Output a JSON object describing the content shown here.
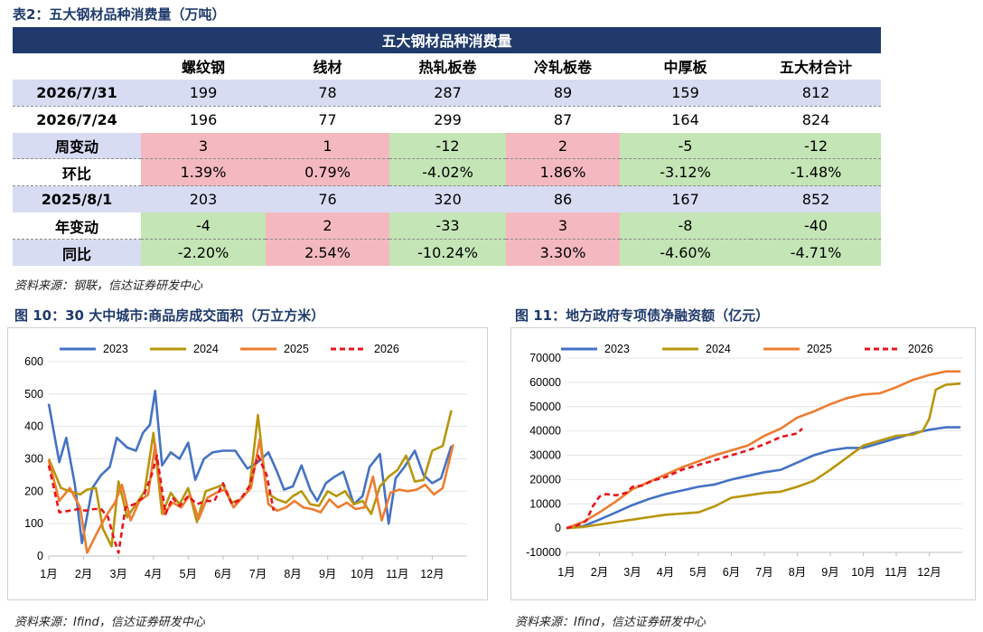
{
  "table": {
    "caption": "表2：五大钢材品种消费量（万吨）",
    "title": "五大钢材品种消费量",
    "columns": [
      "螺纹钢",
      "线材",
      "热轧板卷",
      "冷轧板卷",
      "中厚板",
      "五大材合计"
    ],
    "rows": [
      {
        "label": "2026/7/31",
        "values": [
          "199",
          "78",
          "287",
          "89",
          "159",
          "812"
        ]
      },
      {
        "label": "2026/7/24",
        "values": [
          "196",
          "77",
          "299",
          "87",
          "164",
          "824"
        ]
      },
      {
        "label": "周变动",
        "values": [
          "3",
          "1",
          "-12",
          "2",
          "-5",
          "-12"
        ]
      },
      {
        "label": "环比",
        "values": [
          "1.39%",
          "0.79%",
          "-4.02%",
          "1.86%",
          "-3.12%",
          "-1.48%"
        ]
      },
      {
        "label": "2025/8/1",
        "values": [
          "203",
          "76",
          "320",
          "86",
          "167",
          "852"
        ]
      },
      {
        "label": "年变动",
        "values": [
          "-4",
          "2",
          "-33",
          "3",
          "-8",
          "-40"
        ]
      },
      {
        "label": "同比",
        "values": [
          "-2.20%",
          "2.54%",
          "-10.24%",
          "3.30%",
          "-4.60%",
          "-4.71%"
        ]
      }
    ],
    "source": "资料来源：钢联，信达证券研发中心",
    "colors": {
      "header": "#1f3a6b",
      "rise": "#f4b9c0",
      "fall": "#c4e5b5",
      "date_row": "#d8dcf3"
    }
  },
  "chart_data": [
    {
      "type": "line",
      "caption": "图 10：30 大中城市:商品房成交面积（万立方米）",
      "x_ticks": [
        "1月",
        "2月",
        "3月",
        "4月",
        "5月",
        "6月",
        "7月",
        "8月",
        "9月",
        "10月",
        "11月",
        "12月"
      ],
      "ylim": [
        0,
        600
      ],
      "y_ticks": [
        "0",
        "100",
        "200",
        "300",
        "400",
        "500",
        "600"
      ],
      "series": [
        {
          "name": "2023",
          "color": "#4472c4",
          "dashed": false,
          "x": [
            1,
            1.3,
            1.5,
            1.75,
            1.95,
            2.25,
            2.5,
            2.75,
            2.95,
            3.25,
            3.5,
            3.7,
            3.9,
            4.05,
            4.25,
            4.5,
            4.75,
            5.0,
            5.2,
            5.45,
            5.7,
            6.0,
            6.35,
            6.7,
            7.0,
            7.3,
            7.55,
            7.75,
            8.0,
            8.25,
            8.5,
            8.7,
            8.95,
            9.2,
            9.45,
            9.75,
            10.0,
            10.2,
            10.5,
            10.75,
            10.95,
            11.2,
            11.5,
            11.75,
            12.0,
            12.25,
            12.55
          ],
          "y": [
            470,
            290,
            365,
            220,
            40,
            210,
            250,
            275,
            365,
            335,
            325,
            380,
            405,
            510,
            280,
            320,
            300,
            350,
            235,
            300,
            320,
            325,
            325,
            270,
            290,
            320,
            260,
            205,
            215,
            280,
            205,
            170,
            225,
            245,
            260,
            160,
            185,
            275,
            315,
            100,
            240,
            275,
            325,
            250,
            225,
            240,
            340
          ]
        },
        {
          "name": "2024",
          "color": "#b8960c",
          "dashed": false,
          "x": [
            1,
            1.35,
            1.6,
            1.9,
            2.1,
            2.35,
            2.55,
            2.8,
            3.0,
            3.25,
            3.5,
            3.75,
            4.0,
            4.25,
            4.5,
            4.75,
            5.0,
            5.25,
            5.5,
            5.75,
            6.0,
            6.25,
            6.5,
            6.75,
            7.0,
            7.25,
            7.55,
            7.8,
            8.0,
            8.25,
            8.5,
            8.75,
            9.0,
            9.25,
            9.5,
            9.75,
            10.0,
            10.25,
            10.5,
            10.75,
            11.0,
            11.25,
            11.5,
            11.75,
            12.0,
            12.3,
            12.55
          ],
          "y": [
            300,
            210,
            200,
            190,
            205,
            210,
            85,
            30,
            230,
            120,
            160,
            200,
            380,
            130,
            195,
            160,
            210,
            105,
            200,
            210,
            220,
            165,
            175,
            205,
            435,
            195,
            175,
            165,
            185,
            200,
            160,
            155,
            200,
            185,
            200,
            160,
            170,
            130,
            215,
            245,
            265,
            310,
            230,
            235,
            325,
            340,
            450
          ]
        },
        {
          "name": "2025",
          "color": "#ed7d31",
          "dashed": false,
          "x": [
            1,
            1.3,
            1.6,
            1.9,
            2.1,
            2.4,
            2.65,
            2.9,
            3.1,
            3.35,
            3.6,
            3.85,
            4.05,
            4.3,
            4.55,
            4.8,
            5.05,
            5.3,
            5.55,
            5.8,
            6.05,
            6.3,
            6.55,
            6.8,
            7.05,
            7.3,
            7.55,
            7.8,
            8.05,
            8.3,
            8.55,
            8.8,
            9.05,
            9.3,
            9.55,
            9.8,
            10.05,
            10.3,
            10.55,
            10.8,
            11.05,
            11.3,
            11.55,
            11.8,
            12.05,
            12.3,
            12.6
          ],
          "y": [
            295,
            170,
            210,
            150,
            10,
            75,
            125,
            165,
            220,
            110,
            170,
            190,
            345,
            130,
            165,
            150,
            190,
            115,
            180,
            195,
            205,
            150,
            180,
            210,
            360,
            160,
            140,
            150,
            170,
            150,
            145,
            135,
            175,
            150,
            165,
            145,
            150,
            245,
            110,
            195,
            205,
            200,
            205,
            220,
            190,
            210,
            345
          ]
        },
        {
          "name": "2026",
          "color": "#e8141e",
          "dashed": true,
          "x": [
            1,
            1.3,
            1.6,
            1.85,
            2.05,
            2.3,
            2.5,
            2.7,
            2.85,
            3.0,
            3.2,
            3.45,
            3.7,
            3.95,
            4.1,
            4.35,
            4.55,
            4.75,
            5.0,
            5.25,
            5.5,
            5.75,
            6.0,
            6.25,
            6.5,
            6.75,
            7.0,
            7.25,
            7.45
          ],
          "y": [
            280,
            135,
            140,
            145,
            140,
            145,
            145,
            120,
            60,
            10,
            150,
            160,
            180,
            250,
            310,
            130,
            180,
            155,
            185,
            160,
            170,
            170,
            225,
            160,
            175,
            215,
            310,
            250,
            140
          ]
        }
      ],
      "source": "资料来源：Ifind，信达证券研发中心"
    },
    {
      "type": "line",
      "caption": "图 11：地方政府专项债净融资额（亿元）",
      "x_ticks": [
        "1月",
        "2月",
        "3月",
        "4月",
        "5月",
        "6月",
        "7月",
        "8月",
        "9月",
        "10月",
        "11月",
        "12月"
      ],
      "ylim": [
        -10000,
        70000
      ],
      "y_ticks": [
        "-10000",
        "0",
        "10000",
        "20000",
        "30000",
        "40000",
        "50000",
        "60000",
        "70000"
      ],
      "series": [
        {
          "name": "2023",
          "color": "#4472c4",
          "dashed": false,
          "x": [
            1,
            1.5,
            2.0,
            2.5,
            3.0,
            3.5,
            4.0,
            4.5,
            5.0,
            5.5,
            6.0,
            6.5,
            7.0,
            7.5,
            8.0,
            8.5,
            9.0,
            9.5,
            10.0,
            10.5,
            11.0,
            11.5,
            12.0,
            12.5,
            12.95
          ],
          "y": [
            0,
            800,
            3500,
            6500,
            9500,
            12000,
            14000,
            15500,
            17000,
            18000,
            20000,
            21500,
            23000,
            24000,
            27000,
            30000,
            32000,
            33000,
            33000,
            35000,
            37000,
            39000,
            40500,
            41500,
            41500
          ]
        },
        {
          "name": "2024",
          "color": "#b8960c",
          "dashed": false,
          "x": [
            1,
            1.5,
            2.0,
            2.5,
            3.0,
            3.5,
            4.0,
            4.5,
            5.0,
            5.5,
            6.0,
            6.5,
            7.0,
            7.5,
            8.0,
            8.5,
            9.0,
            9.5,
            10.0,
            10.5,
            11.0,
            11.5,
            11.8,
            12.0,
            12.2,
            12.5,
            12.95
          ],
          "y": [
            0,
            500,
            1500,
            2500,
            3500,
            4500,
            5500,
            6000,
            6500,
            9000,
            12500,
            13500,
            14500,
            15000,
            17000,
            19500,
            24000,
            29000,
            34000,
            36000,
            38000,
            38500,
            40000,
            45000,
            57000,
            59000,
            59500
          ]
        },
        {
          "name": "2025",
          "color": "#ed7d31",
          "dashed": false,
          "x": [
            1,
            1.5,
            2.0,
            2.5,
            3.0,
            3.5,
            4.0,
            4.5,
            5.0,
            5.5,
            6.0,
            6.5,
            7.0,
            7.5,
            8.0,
            8.5,
            9.0,
            9.5,
            10.0,
            10.5,
            11.0,
            11.5,
            12.0,
            12.5,
            12.95
          ],
          "y": [
            0,
            2500,
            6500,
            11000,
            16000,
            19000,
            22000,
            25000,
            27500,
            30000,
            32000,
            34000,
            38000,
            41000,
            45500,
            48000,
            51000,
            53500,
            55000,
            55500,
            58000,
            61000,
            63000,
            64500,
            64500
          ]
        },
        {
          "name": "2026",
          "color": "#e8141e",
          "dashed": true,
          "x": [
            1,
            1.3,
            1.6,
            1.8,
            2.0,
            2.2,
            2.5,
            2.8,
            3.0,
            3.3,
            3.6,
            4.0,
            4.5,
            5.0,
            5.5,
            6.0,
            6.5,
            7.0,
            7.5,
            8.0,
            8.15
          ],
          "y": [
            0,
            1000,
            3000,
            9000,
            13000,
            14000,
            13500,
            14500,
            17000,
            17500,
            19500,
            21000,
            24000,
            26000,
            28000,
            30000,
            32000,
            34500,
            37500,
            39000,
            41000
          ]
        }
      ],
      "source": "资料来源：Ifind，信达证券研发中心"
    }
  ]
}
